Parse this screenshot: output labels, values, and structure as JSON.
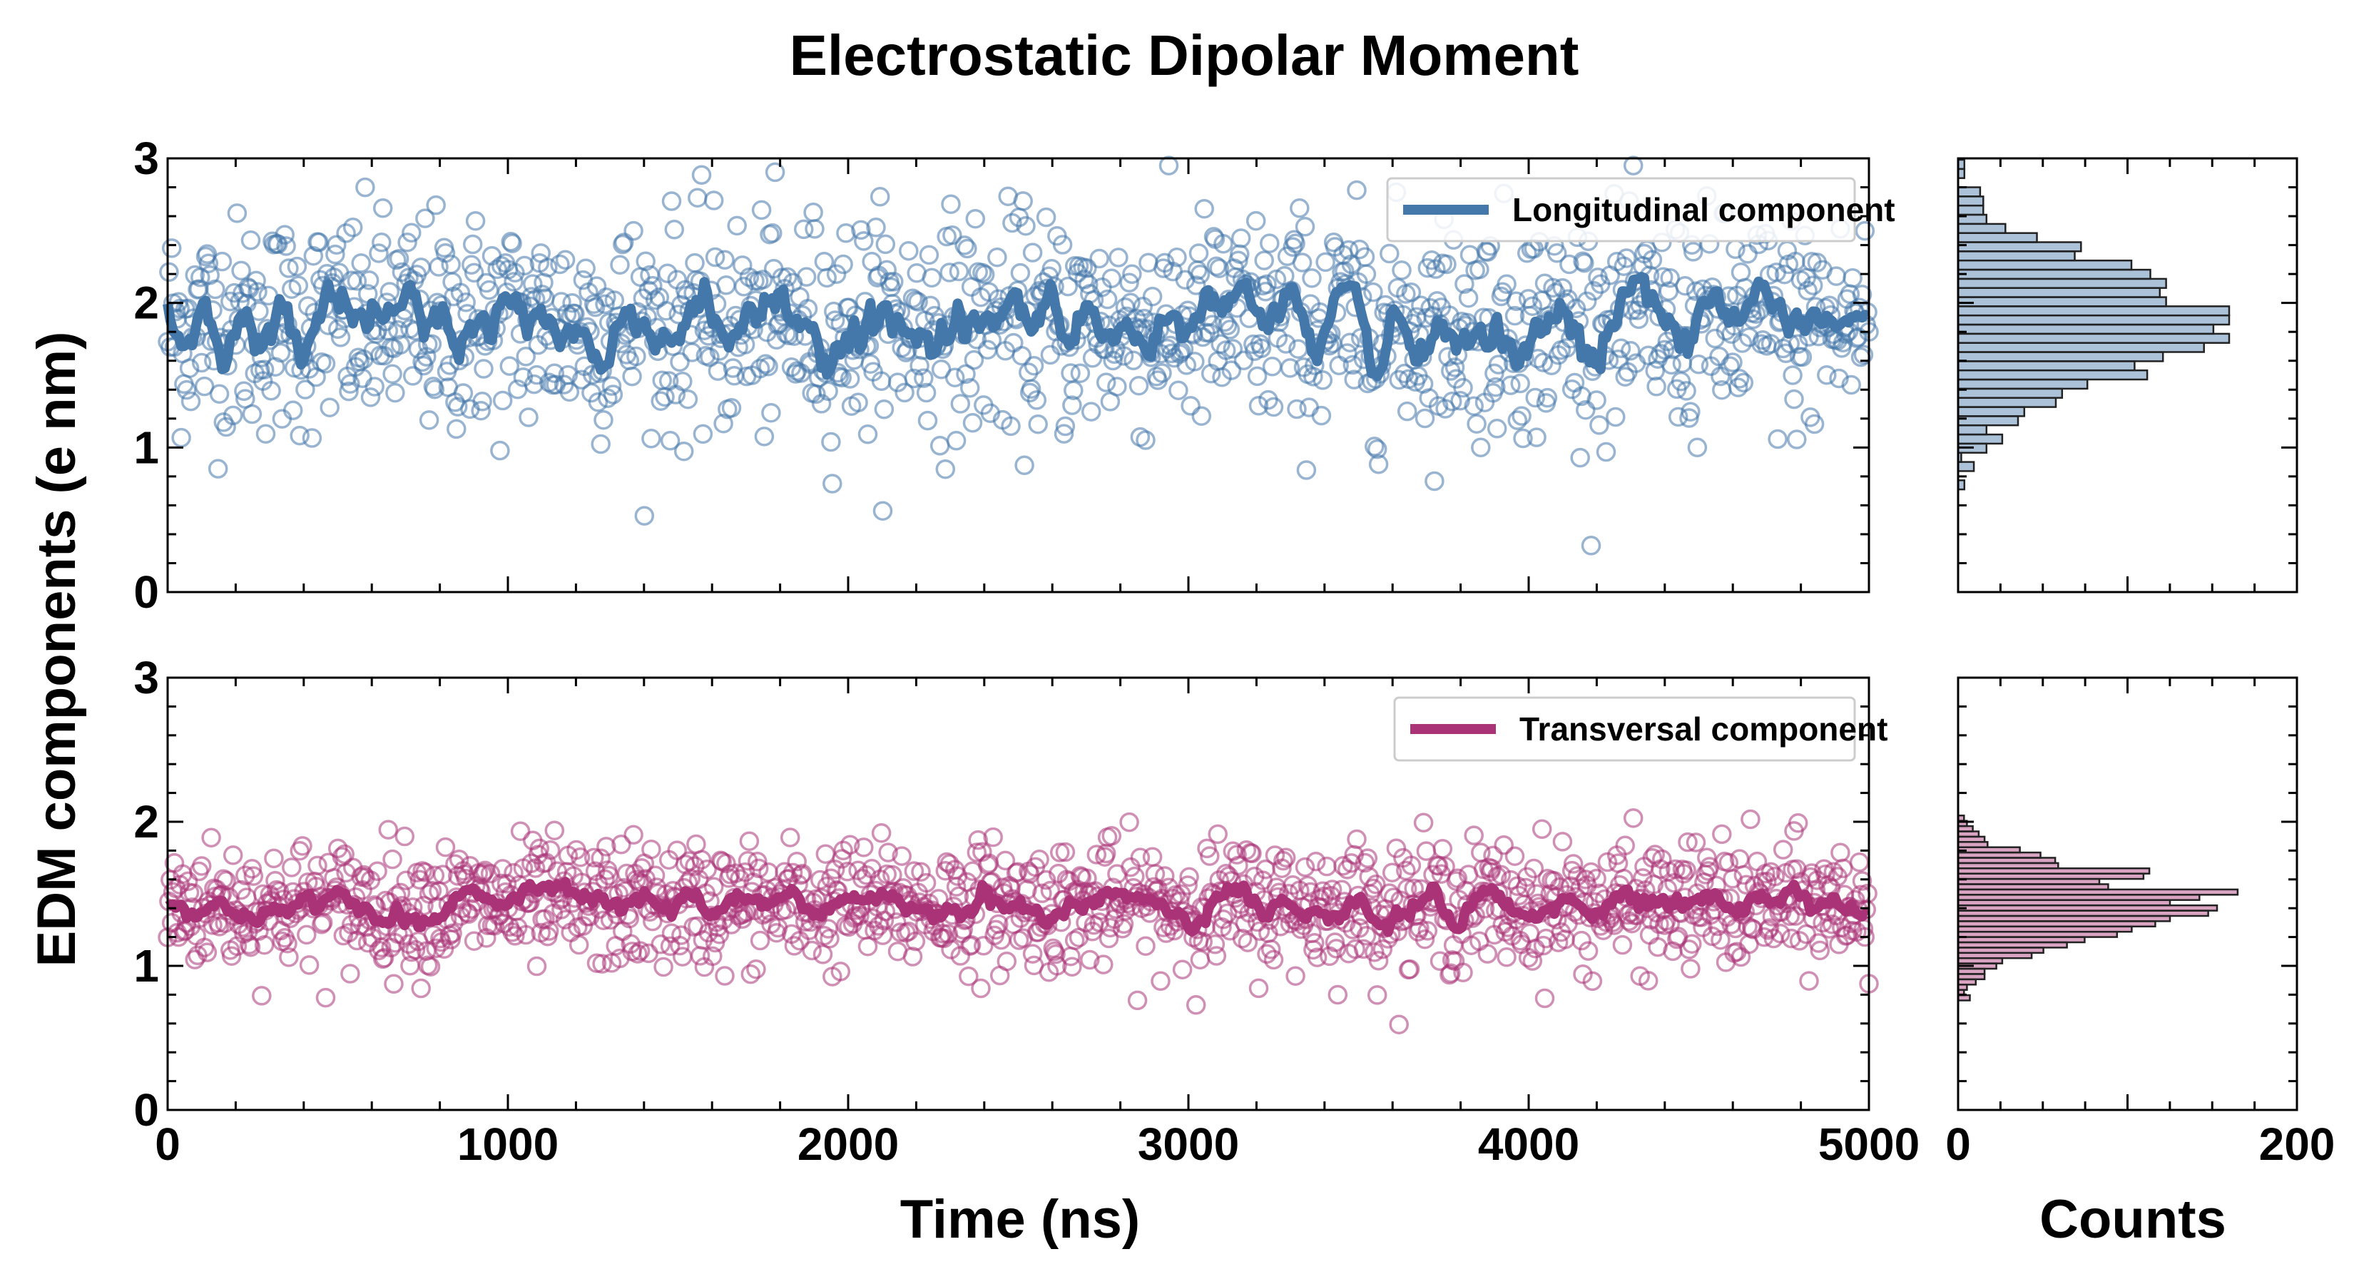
{
  "chart_data": {
    "type": "scatter",
    "title": "Electrostatic Dipolar Moment",
    "xlabel": "Time (ns)",
    "ylabel": "EDM components (e nm)",
    "hist_xlabel": "Counts",
    "xlim": [
      0,
      5000
    ],
    "ylim": [
      0,
      3
    ],
    "hist_xlim": [
      0,
      200
    ],
    "xticks": [
      "0",
      "1000",
      "2000",
      "3000",
      "4000",
      "5000"
    ],
    "yticks": [
      "0",
      "1",
      "2",
      "3"
    ],
    "hist_xticks": [
      "0",
      "200"
    ],
    "series": [
      {
        "name": "Longitudinal component",
        "color": "#4477aa",
        "scatter_mean": 1.85,
        "scatter_sd": 0.38,
        "n_points": 1250,
        "smoothed_mean": 1.85,
        "smoothed_amplitude": 0.22,
        "hist_peak_counts": 160
      },
      {
        "name": "Transversal component",
        "color": "#aa3377",
        "scatter_mean": 1.42,
        "scatter_sd": 0.22,
        "n_points": 1250,
        "smoothed_mean": 1.42,
        "smoothed_amplitude": 0.11,
        "hist_peak_counts": 165
      }
    ]
  }
}
